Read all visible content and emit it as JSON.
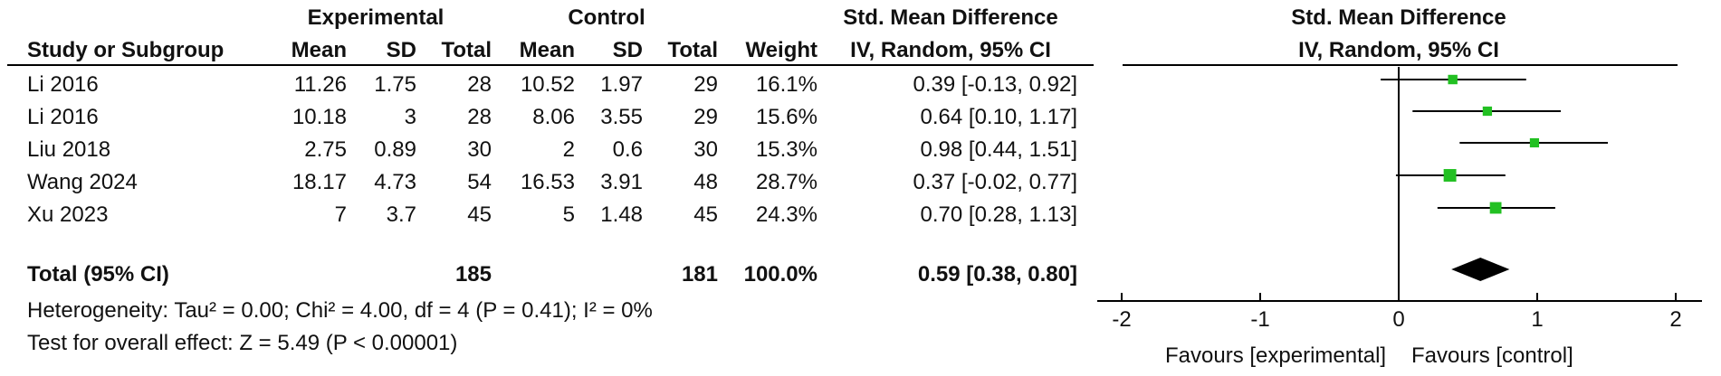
{
  "header": {
    "group1": "Experimental",
    "group2": "Control",
    "effect_title": "Std. Mean Difference",
    "plot_title": "Std. Mean Difference",
    "col_study": "Study or Subgroup",
    "col_mean1": "Mean",
    "col_sd1": "SD",
    "col_total1": "Total",
    "col_mean2": "Mean",
    "col_sd2": "SD",
    "col_total2": "Total",
    "col_weight": "Weight",
    "col_method": "IV, Random, 95% CI",
    "plot_method": "IV, Random, 95% CI"
  },
  "rows": [
    {
      "study": "Li 2016",
      "mean1": "11.26",
      "sd1": "1.75",
      "total1": "28",
      "mean2": "10.52",
      "sd2": "1.97",
      "total2": "29",
      "weight": "16.1%",
      "ci_text": "0.39 [-0.13, 0.92]"
    },
    {
      "study": "Li 2016",
      "mean1": "10.18",
      "sd1": "3",
      "total1": "28",
      "mean2": "8.06",
      "sd2": "3.55",
      "total2": "29",
      "weight": "15.6%",
      "ci_text": "0.64 [0.10, 1.17]"
    },
    {
      "study": "Liu 2018",
      "mean1": "2.75",
      "sd1": "0.89",
      "total1": "30",
      "mean2": "2",
      "sd2": "0.6",
      "total2": "30",
      "weight": "15.3%",
      "ci_text": "0.98 [0.44, 1.51]"
    },
    {
      "study": "Wang 2024",
      "mean1": "18.17",
      "sd1": "4.73",
      "total1": "54",
      "mean2": "16.53",
      "sd2": "3.91",
      "total2": "48",
      "weight": "28.7%",
      "ci_text": "0.37 [-0.02, 0.77]"
    },
    {
      "study": "Xu 2023",
      "mean1": "7",
      "sd1": "3.7",
      "total1": "45",
      "mean2": "5",
      "sd2": "1.48",
      "total2": "45",
      "weight": "24.3%",
      "ci_text": "0.70 [0.28, 1.13]"
    }
  ],
  "total": {
    "label": "Total (95% CI)",
    "total1": "185",
    "total2": "181",
    "weight": "100.0%",
    "ci_text": "0.59 [0.38, 0.80]"
  },
  "footer": {
    "heterogeneity": "Heterogeneity: Tau² = 0.00; Chi² = 4.00, df = 4 (P = 0.41); I² = 0%",
    "overall": "Test for overall effect: Z = 5.49 (P < 0.00001)"
  },
  "chart_data": {
    "type": "forest",
    "xlim": [
      -2,
      2
    ],
    "ticks": [
      "-2",
      "-1",
      "0",
      "1",
      "2"
    ],
    "favours_left": "Favours [experimental]",
    "favours_right": "Favours [control]",
    "marker_color": "#22c022",
    "studies": [
      {
        "estimate": 0.39,
        "lower": -0.13,
        "upper": 0.92,
        "weight": 16.1
      },
      {
        "estimate": 0.64,
        "lower": 0.1,
        "upper": 1.17,
        "weight": 15.6
      },
      {
        "estimate": 0.98,
        "lower": 0.44,
        "upper": 1.51,
        "weight": 15.3
      },
      {
        "estimate": 0.37,
        "lower": -0.02,
        "upper": 0.77,
        "weight": 28.7
      },
      {
        "estimate": 0.7,
        "lower": 0.28,
        "upper": 1.13,
        "weight": 24.3
      }
    ],
    "pooled": {
      "estimate": 0.59,
      "lower": 0.38,
      "upper": 0.8
    }
  }
}
